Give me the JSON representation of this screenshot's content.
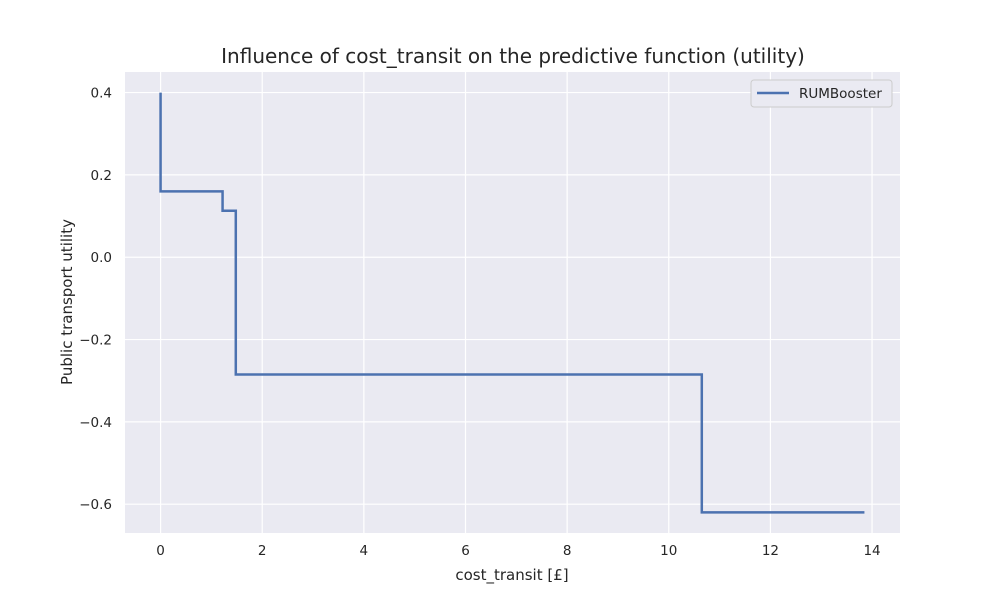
{
  "chart_data": {
    "type": "line",
    "title": "Influence of cost_transit on the predictive function (utility)",
    "xlabel": "cost_transit [£]",
    "ylabel": "Public transport utility",
    "xlim": [
      -0.7,
      14.55
    ],
    "ylim": [
      -0.67,
      0.45
    ],
    "xticks": [
      0,
      2,
      4,
      6,
      8,
      10,
      12,
      14
    ],
    "yticks": [
      0.4,
      0.2,
      0.0,
      -0.2,
      -0.4,
      -0.6
    ],
    "xtick_labels": [
      "0",
      "2",
      "4",
      "6",
      "8",
      "10",
      "12",
      "14"
    ],
    "ytick_labels": [
      "0.4",
      "0.2",
      "0.0",
      "−0.2",
      "−0.4",
      "−0.6"
    ],
    "grid": true,
    "legend_position": "top-right",
    "series": [
      {
        "name": "RUMBooster",
        "color": "#4c72b0",
        "step": true,
        "x": [
          0.0,
          0.0,
          1.22,
          1.22,
          1.48,
          1.48,
          10.65,
          10.65,
          13.85
        ],
        "y": [
          0.4,
          0.16,
          0.16,
          0.113,
          0.113,
          -0.285,
          -0.285,
          -0.62,
          -0.62
        ]
      }
    ]
  },
  "colors": {
    "plot_background": "#eaeaf2",
    "grid": "#ffffff",
    "line": "#4c72b0"
  }
}
